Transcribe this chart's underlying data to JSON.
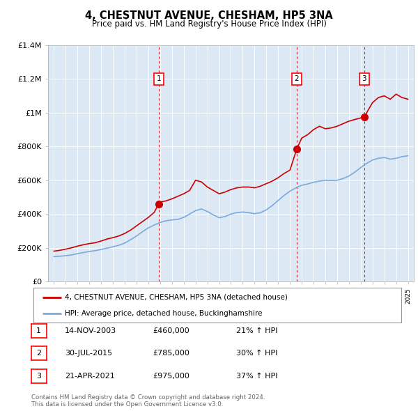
{
  "title": "4, CHESTNUT AVENUE, CHESHAM, HP5 3NA",
  "subtitle": "Price paid vs. HM Land Registry's House Price Index (HPI)",
  "footer": "Contains HM Land Registry data © Crown copyright and database right 2024.\nThis data is licensed under the Open Government Licence v3.0.",
  "legend_property": "4, CHESTNUT AVENUE, CHESHAM, HP5 3NA (detached house)",
  "legend_hpi": "HPI: Average price, detached house, Buckinghamshire",
  "property_color": "#cc0000",
  "hpi_color": "#7aaadd",
  "background_color": "#dce9f5",
  "sale_markers": [
    {
      "label": "1",
      "year": 2003.87,
      "price": 460000,
      "pct": "21% ↑ HPI",
      "date": "14-NOV-2003"
    },
    {
      "label": "2",
      "year": 2015.58,
      "price": 785000,
      "pct": "30% ↑ HPI",
      "date": "30-JUL-2015"
    },
    {
      "label": "3",
      "year": 2021.3,
      "price": 975000,
      "pct": "37% ↑ HPI",
      "date": "21-APR-2021"
    }
  ],
  "property_data": [
    [
      1995.0,
      180000
    ],
    [
      1995.5,
      185000
    ],
    [
      1996.0,
      192000
    ],
    [
      1996.5,
      200000
    ],
    [
      1997.0,
      210000
    ],
    [
      1997.5,
      218000
    ],
    [
      1998.0,
      225000
    ],
    [
      1998.5,
      230000
    ],
    [
      1999.0,
      240000
    ],
    [
      1999.5,
      252000
    ],
    [
      2000.0,
      260000
    ],
    [
      2000.5,
      270000
    ],
    [
      2001.0,
      285000
    ],
    [
      2001.5,
      305000
    ],
    [
      2002.0,
      330000
    ],
    [
      2002.5,
      355000
    ],
    [
      2003.0,
      380000
    ],
    [
      2003.5,
      410000
    ],
    [
      2003.87,
      460000
    ],
    [
      2004.0,
      470000
    ],
    [
      2004.5,
      478000
    ],
    [
      2005.0,
      490000
    ],
    [
      2005.5,
      505000
    ],
    [
      2006.0,
      520000
    ],
    [
      2006.5,
      540000
    ],
    [
      2007.0,
      600000
    ],
    [
      2007.5,
      590000
    ],
    [
      2008.0,
      560000
    ],
    [
      2008.5,
      540000
    ],
    [
      2009.0,
      520000
    ],
    [
      2009.5,
      530000
    ],
    [
      2010.0,
      545000
    ],
    [
      2010.5,
      555000
    ],
    [
      2011.0,
      560000
    ],
    [
      2011.5,
      560000
    ],
    [
      2012.0,
      555000
    ],
    [
      2012.5,
      565000
    ],
    [
      2013.0,
      580000
    ],
    [
      2013.5,
      595000
    ],
    [
      2014.0,
      615000
    ],
    [
      2014.5,
      640000
    ],
    [
      2015.0,
      660000
    ],
    [
      2015.58,
      785000
    ],
    [
      2016.0,
      850000
    ],
    [
      2016.5,
      870000
    ],
    [
      2017.0,
      900000
    ],
    [
      2017.5,
      920000
    ],
    [
      2018.0,
      905000
    ],
    [
      2018.5,
      910000
    ],
    [
      2019.0,
      920000
    ],
    [
      2019.5,
      935000
    ],
    [
      2020.0,
      950000
    ],
    [
      2020.5,
      960000
    ],
    [
      2021.3,
      975000
    ],
    [
      2021.5,
      1000000
    ],
    [
      2022.0,
      1060000
    ],
    [
      2022.5,
      1090000
    ],
    [
      2023.0,
      1100000
    ],
    [
      2023.5,
      1080000
    ],
    [
      2024.0,
      1110000
    ],
    [
      2024.5,
      1090000
    ],
    [
      2025.0,
      1080000
    ]
  ],
  "hpi_data": [
    [
      1995.0,
      148000
    ],
    [
      1995.5,
      150000
    ],
    [
      1996.0,
      153000
    ],
    [
      1996.5,
      158000
    ],
    [
      1997.0,
      165000
    ],
    [
      1997.5,
      172000
    ],
    [
      1998.0,
      178000
    ],
    [
      1998.5,
      183000
    ],
    [
      1999.0,
      190000
    ],
    [
      1999.5,
      198000
    ],
    [
      2000.0,
      206000
    ],
    [
      2000.5,
      215000
    ],
    [
      2001.0,
      228000
    ],
    [
      2001.5,
      248000
    ],
    [
      2002.0,
      270000
    ],
    [
      2002.5,
      295000
    ],
    [
      2003.0,
      318000
    ],
    [
      2003.5,
      335000
    ],
    [
      2004.0,
      350000
    ],
    [
      2004.5,
      360000
    ],
    [
      2005.0,
      365000
    ],
    [
      2005.5,
      368000
    ],
    [
      2006.0,
      380000
    ],
    [
      2006.5,
      400000
    ],
    [
      2007.0,
      420000
    ],
    [
      2007.5,
      430000
    ],
    [
      2008.0,
      415000
    ],
    [
      2008.5,
      395000
    ],
    [
      2009.0,
      378000
    ],
    [
      2009.5,
      385000
    ],
    [
      2010.0,
      400000
    ],
    [
      2010.5,
      408000
    ],
    [
      2011.0,
      412000
    ],
    [
      2011.5,
      408000
    ],
    [
      2012.0,
      402000
    ],
    [
      2012.5,
      408000
    ],
    [
      2013.0,
      425000
    ],
    [
      2013.5,
      450000
    ],
    [
      2014.0,
      480000
    ],
    [
      2014.5,
      510000
    ],
    [
      2015.0,
      535000
    ],
    [
      2015.5,
      555000
    ],
    [
      2016.0,
      570000
    ],
    [
      2016.5,
      578000
    ],
    [
      2017.0,
      588000
    ],
    [
      2017.5,
      595000
    ],
    [
      2018.0,
      600000
    ],
    [
      2018.5,
      598000
    ],
    [
      2019.0,
      600000
    ],
    [
      2019.5,
      610000
    ],
    [
      2020.0,
      625000
    ],
    [
      2020.5,
      648000
    ],
    [
      2021.0,
      675000
    ],
    [
      2021.5,
      700000
    ],
    [
      2022.0,
      720000
    ],
    [
      2022.5,
      730000
    ],
    [
      2023.0,
      735000
    ],
    [
      2023.5,
      725000
    ],
    [
      2024.0,
      730000
    ],
    [
      2024.5,
      740000
    ],
    [
      2025.0,
      745000
    ]
  ],
  "ylim": [
    0,
    1400000
  ],
  "xlim": [
    1994.5,
    2025.5
  ],
  "yticks": [
    0,
    200000,
    400000,
    600000,
    800000,
    1000000,
    1200000,
    1400000
  ],
  "ytick_labels": [
    "£0",
    "£200K",
    "£400K",
    "£600K",
    "£800K",
    "£1M",
    "£1.2M",
    "£1.4M"
  ],
  "xticks": [
    1995,
    1996,
    1997,
    1998,
    1999,
    2000,
    2001,
    2002,
    2003,
    2004,
    2005,
    2006,
    2007,
    2008,
    2009,
    2010,
    2011,
    2012,
    2013,
    2014,
    2015,
    2016,
    2017,
    2018,
    2019,
    2020,
    2021,
    2022,
    2023,
    2024,
    2025
  ]
}
